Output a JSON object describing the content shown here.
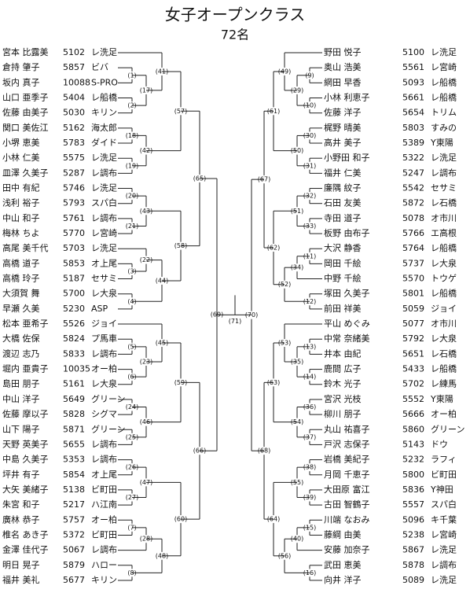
{
  "title": "女子オープンクラス",
  "subtitle": "72名",
  "left": [
    {
      "name": "宮本 比露美",
      "id": 5102,
      "club": "レ洗足"
    },
    {
      "name": "倉持 肇子",
      "id": 5857,
      "club": "ビバ"
    },
    {
      "name": "坂内 真子",
      "id": 10088,
      "club": "S-PRO"
    },
    {
      "name": "山口 亜季子",
      "id": 5404,
      "club": "レ船橋"
    },
    {
      "name": "佐藤 由美子",
      "id": 5030,
      "club": "キリン"
    },
    {
      "name": "関口 美佐江",
      "id": 5162,
      "club": "海太郎"
    },
    {
      "name": "小堺 恵美",
      "id": 5783,
      "club": "ダイド"
    },
    {
      "name": "小林 仁美",
      "id": 5575,
      "club": "レ洗足"
    },
    {
      "name": "皿澤 久美子",
      "id": 5287,
      "club": "レ調布"
    },
    {
      "name": "田中 有紀",
      "id": 5746,
      "club": "レ洗足"
    },
    {
      "name": "浅利 裕子",
      "id": 5793,
      "club": "スパ白"
    },
    {
      "name": "中山 和子",
      "id": 5761,
      "club": "レ調布"
    },
    {
      "name": "梅林 ちよ",
      "id": 5770,
      "club": "レ宮崎"
    },
    {
      "name": "高尾 美千代",
      "id": 5703,
      "club": "レ洗足"
    },
    {
      "name": "高橋 道子",
      "id": 5853,
      "club": "オ上尾"
    },
    {
      "name": "高橋 玲子",
      "id": 5187,
      "club": "セサミ"
    },
    {
      "name": "大須賀 舞",
      "id": 5700,
      "club": "レ大泉"
    },
    {
      "name": "早瀬 久美",
      "id": 5230,
      "club": "ASP"
    },
    {
      "name": "松本 亜希子",
      "id": 5526,
      "club": "ジョイ"
    },
    {
      "name": "大橋 佐保",
      "id": 5824,
      "club": "プ馬車"
    },
    {
      "name": "渡辺 志乃",
      "id": 5833,
      "club": "レ調布"
    },
    {
      "name": "堀内 亜貴子",
      "id": 10035,
      "club": "オー柏"
    },
    {
      "name": "島田 朋子",
      "id": 5161,
      "club": "レ大泉"
    },
    {
      "name": "中山 洋子",
      "id": 5649,
      "club": "グリーン"
    },
    {
      "name": "佐藤 摩以子",
      "id": 5828,
      "club": "シグマ"
    },
    {
      "name": "山下 陽子",
      "id": 5871,
      "club": "グリーン"
    },
    {
      "name": "天野 英美子",
      "id": 5655,
      "club": "レ調布"
    },
    {
      "name": "中島 久美子",
      "id": 5353,
      "club": "レ調布"
    },
    {
      "name": "坪井 有子",
      "id": 5854,
      "club": "オ上尾"
    },
    {
      "name": "大矢 美緒子",
      "id": 5138,
      "club": "ビ町田"
    },
    {
      "name": "朱宮 和子",
      "id": 5217,
      "club": "ハ江南"
    },
    {
      "name": "廣林 恭子",
      "id": 5757,
      "club": "オー柏"
    },
    {
      "name": "椎名 あき子",
      "id": 5372,
      "club": "ビ町田"
    },
    {
      "name": "金澤 佳代子",
      "id": 5067,
      "club": "レ調布"
    },
    {
      "name": "明日 晃子",
      "id": 5879,
      "club": "ハロー"
    },
    {
      "name": "福井 美礼",
      "id": 5677,
      "club": "キリン"
    }
  ],
  "right": [
    {
      "name": "野田 悦子",
      "id": 5100,
      "club": "レ洗足"
    },
    {
      "name": "奥山 浩美",
      "id": 5561,
      "club": "レ宮崎"
    },
    {
      "name": "網田 早香",
      "id": 5093,
      "club": "レ船橋"
    },
    {
      "name": "小林 利恵子",
      "id": 5661,
      "club": "レ船橋"
    },
    {
      "name": "佐藤 洋子",
      "id": 5654,
      "club": "トリム"
    },
    {
      "name": "梶野 晴美",
      "id": 5803,
      "club": "すみの"
    },
    {
      "name": "高井 美子",
      "id": 5389,
      "club": "Y東陽"
    },
    {
      "name": "小野田 和子",
      "id": 5322,
      "club": "レ洗足"
    },
    {
      "name": "福井 仁美",
      "id": 5247,
      "club": "レ調布"
    },
    {
      "name": "廉隅 紋子",
      "id": 5542,
      "club": "セサミ"
    },
    {
      "name": "石田 友美",
      "id": 5872,
      "club": "レ石橋"
    },
    {
      "name": "寺田 道子",
      "id": 5078,
      "club": "オ市川"
    },
    {
      "name": "板野 由布子",
      "id": 5766,
      "club": "エ高根"
    },
    {
      "name": "大沢 静香",
      "id": 5764,
      "club": "レ船橋"
    },
    {
      "name": "岡田 千絵",
      "id": 5737,
      "club": "レ大泉"
    },
    {
      "name": "中野 千絵",
      "id": 5570,
      "club": "トウゲ"
    },
    {
      "name": "塚田 久美子",
      "id": 5801,
      "club": "レ船橋"
    },
    {
      "name": "前田 祥美",
      "id": 5059,
      "club": "ジョイ"
    },
    {
      "name": "平山 めぐみ",
      "id": 5077,
      "club": "オ市川"
    },
    {
      "name": "中常 奈緒美",
      "id": 5792,
      "club": "レ大泉"
    },
    {
      "name": "井本 由紀",
      "id": 5651,
      "club": "レ石橋"
    },
    {
      "name": "鹿間 広子",
      "id": 5433,
      "club": "レ船橋"
    },
    {
      "name": "鈴木 光子",
      "id": 5702,
      "club": "レ練馬"
    },
    {
      "name": "宮沢 光枝",
      "id": 5552,
      "club": "Y東陽"
    },
    {
      "name": "柳川 朋子",
      "id": 5666,
      "club": "オー柏"
    },
    {
      "name": "丸山 祐喜子",
      "id": 5860,
      "club": "グリーン"
    },
    {
      "name": "戸沢 志保子",
      "id": 5143,
      "club": "ドウ"
    },
    {
      "name": "岩橋 美紀子",
      "id": 5232,
      "club": "ラフィ"
    },
    {
      "name": "月岡 千恵子",
      "id": 5800,
      "club": "ビ町田"
    },
    {
      "name": "大田原 富江",
      "id": 5836,
      "club": "Y神田"
    },
    {
      "name": "古田 智鶴子",
      "id": 5557,
      "club": "スパ白"
    },
    {
      "name": "川端 なおみ",
      "id": 5096,
      "club": "キ千葉"
    },
    {
      "name": "藤綱 由美",
      "id": 5238,
      "club": "レ宮崎"
    },
    {
      "name": "安藤 加奈子",
      "id": 5867,
      "club": "レ洗足"
    },
    {
      "name": "武田 恵美",
      "id": 5878,
      "club": "レ調布"
    },
    {
      "name": "向井 洋子",
      "id": 5089,
      "club": "レ洗足"
    }
  ],
  "matches": [
    "(1)",
    "(2)",
    "(3)",
    "(4)",
    "(5)",
    "(6)",
    "(7)",
    "(8)",
    "(9)",
    "(10)",
    "(11)",
    "(12)",
    "(13)",
    "(14)",
    "(15)",
    "(16)",
    "(17)",
    "(18)",
    "(19)",
    "(20)",
    "(21)",
    "(22)",
    "(23)",
    "(24)",
    "(25)",
    "(26)",
    "(27)",
    "(28)",
    "(29)",
    "(30)",
    "(31)",
    "(32)",
    "(33)",
    "(34)",
    "(35)",
    "(36)",
    "(37)",
    "(38)",
    "(39)",
    "(40)",
    "(41)",
    "(42)",
    "(43)",
    "(44)",
    "(45)",
    "(46)",
    "(47)",
    "(48)",
    "(49)",
    "(50)",
    "(51)",
    "(52)",
    "(53)",
    "(54)",
    "(55)",
    "(56)",
    "(57)",
    "(58)",
    "(59)",
    "(60)",
    "(61)",
    "(62)",
    "(63)",
    "(64)",
    "(65)",
    "(66)",
    "(67)",
    "(68)",
    "(69)",
    "(70)",
    "(71)"
  ]
}
